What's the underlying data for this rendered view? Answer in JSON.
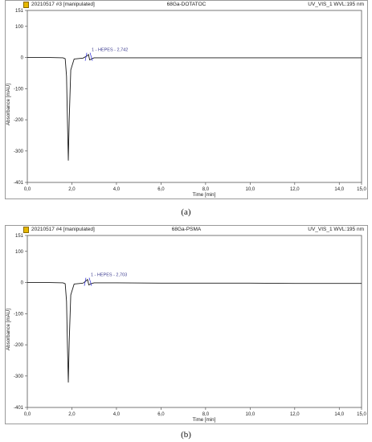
{
  "panels": [
    {
      "label": "(a)",
      "header_left": "20210517 #3 [manipulated]",
      "header_center": "68Ga-DOTATOC",
      "header_right": "UV_VIS_1 WVL:195 nm"
    },
    {
      "label": "(b)",
      "header_left": "20210517 #4 [manipulated]",
      "header_center": "68Ga-PSMA",
      "header_right": "UV_VIS_1 WVL:195 nm"
    }
  ],
  "chart_data": [
    {
      "type": "line",
      "xlabel": "Time [min]",
      "ylabel": "Absorbance [mAU]",
      "xlim": [
        0,
        15
      ],
      "ylim": [
        -401,
        151
      ],
      "x_ticks": [
        "0,0",
        "2,0",
        "4,0",
        "6,0",
        "8,0",
        "10,0",
        "12,0",
        "14,0",
        "15,0"
      ],
      "y_ticks": [
        "151",
        "100",
        "0",
        "-100",
        "-200",
        "-300",
        "-401"
      ],
      "series": [
        {
          "x": [
            0,
            1.0,
            1.6,
            1.7,
            1.76,
            1.8,
            1.84,
            1.88,
            1.95,
            2.1,
            2.5,
            2.7,
            2.742,
            2.8,
            2.9,
            3.0,
            4.0,
            6.0,
            8.0,
            10.0,
            12.0,
            14.0,
            15.0
          ],
          "y": [
            0,
            0,
            -1,
            -4,
            -60,
            -200,
            -330,
            -200,
            -40,
            -5,
            -2,
            6,
            10,
            -8,
            -4,
            -1,
            -1,
            -1,
            -1,
            -1,
            -1,
            -1,
            -1
          ]
        }
      ],
      "annotations": [
        {
          "text": "1 - HEPES - 2,742",
          "x": 2.742,
          "y": 10
        }
      ]
    },
    {
      "type": "line",
      "xlabel": "Time [min]",
      "ylabel": "Absorbance [mAU]",
      "xlim": [
        0,
        15
      ],
      "ylim": [
        -401,
        151
      ],
      "x_ticks": [
        "0,0",
        "2,0",
        "4,0",
        "6,0",
        "8,0",
        "10,0",
        "12,0",
        "14,0",
        "15,0"
      ],
      "y_ticks": [
        "151",
        "100",
        "0",
        "-100",
        "-200",
        "-300",
        "-401"
      ],
      "series": [
        {
          "x": [
            0,
            1.0,
            1.6,
            1.7,
            1.76,
            1.8,
            1.84,
            1.88,
            1.95,
            2.1,
            2.5,
            2.65,
            2.703,
            2.76,
            2.85,
            3.0,
            4.0,
            6.0,
            8.0,
            10.0,
            12.0,
            14.0,
            15.0
          ],
          "y": [
            0,
            0,
            -1,
            -4,
            -60,
            -200,
            -320,
            -190,
            -40,
            -5,
            -2,
            6,
            10,
            -8,
            -4,
            -1,
            -1,
            -2,
            -2,
            -2,
            -3,
            -3,
            -3
          ]
        }
      ],
      "annotations": [
        {
          "text": "1 - HEPES - 2,703",
          "x": 2.703,
          "y": 10
        }
      ]
    }
  ],
  "colors": {
    "trace": "#1a1a1a",
    "annotation": "#3b3b8f",
    "peak_marker": "#2b2bd8",
    "frame": "#9a9a9a",
    "header_icon": "#e6b800"
  }
}
